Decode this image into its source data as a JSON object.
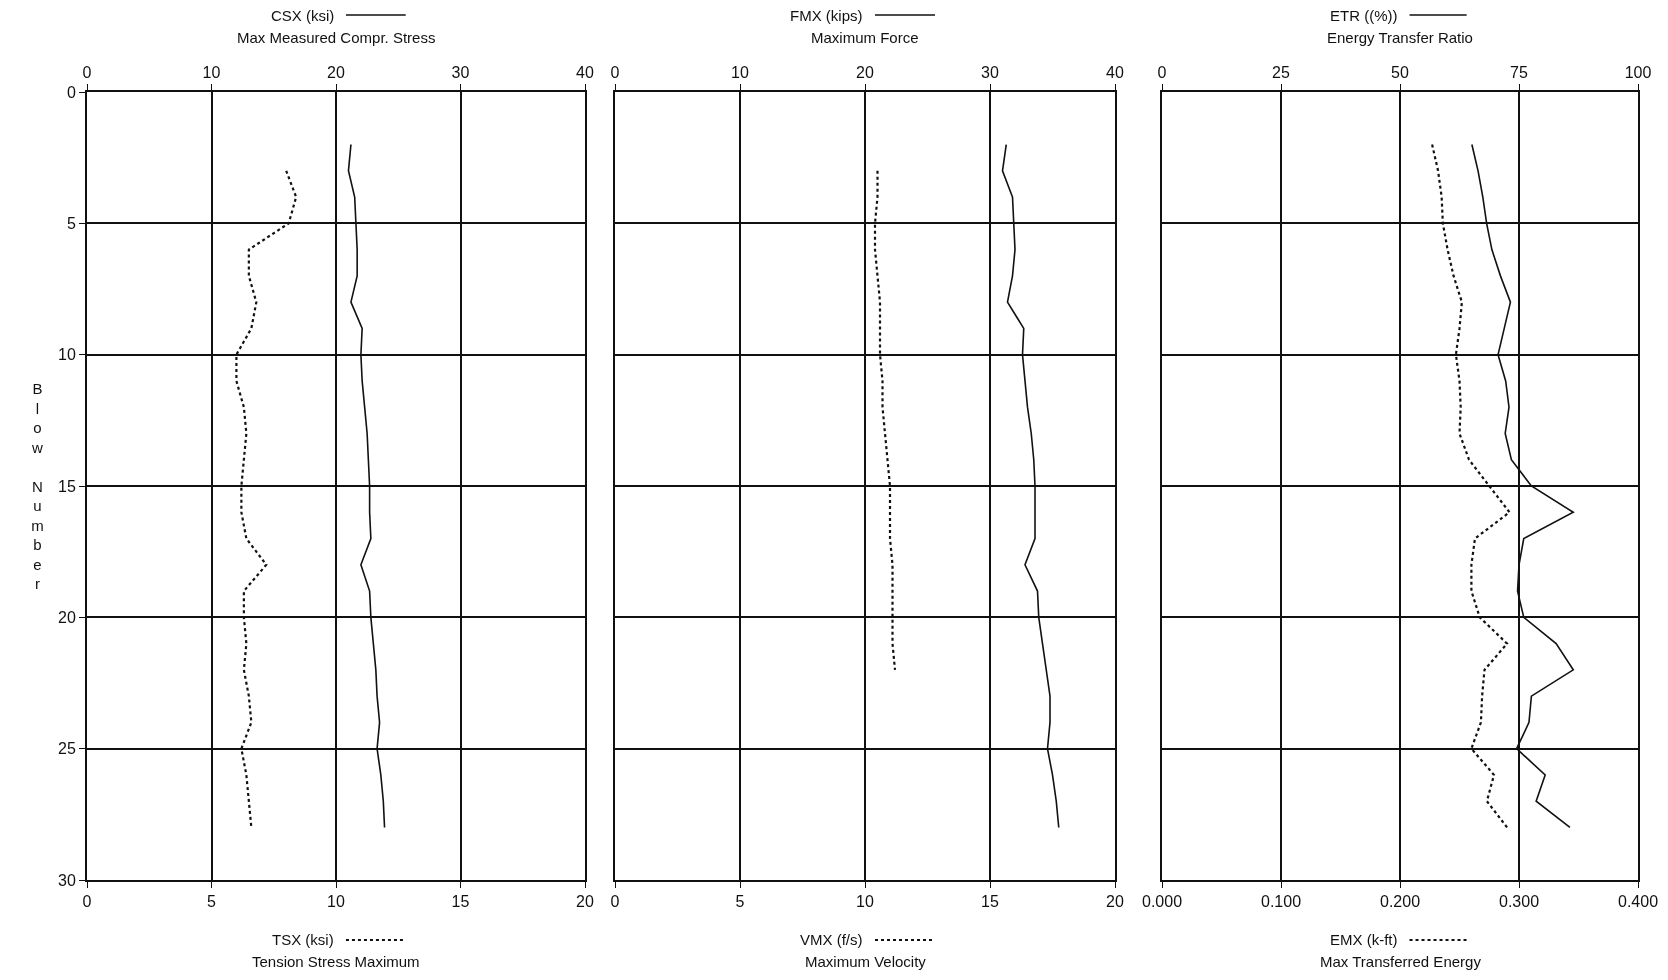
{
  "chart_data": [
    {
      "type": "line",
      "orientation": "horizontal",
      "legend": "top",
      "ylabel": "Blow Number",
      "x2label": "Max Measured Compr. Stress",
      "xlabel": "Tension Stress Maximum",
      "x": [
        2,
        3,
        4,
        5,
        6,
        7,
        8,
        9,
        10,
        11,
        12,
        13,
        14,
        15,
        16,
        17,
        18,
        19,
        20,
        21,
        22,
        23,
        24,
        25,
        26,
        27,
        28
      ],
      "ylim": [
        30,
        0
      ],
      "yticks": [
        0,
        5,
        10,
        15,
        20,
        25,
        30
      ],
      "xlim": [
        0,
        20
      ],
      "xticks": [
        0,
        5,
        10,
        15,
        20
      ],
      "x2lim": [
        0,
        40
      ],
      "x2ticks": [
        0,
        10,
        20,
        30,
        40
      ],
      "grid": true,
      "series": [
        {
          "name": "CSX (ksi)",
          "axis": "x2",
          "color": "#111111",
          "line_style": "solid",
          "values": [
            21.2,
            21.0,
            21.5,
            21.6,
            21.7,
            21.7,
            21.2,
            22.1,
            22.0,
            22.1,
            22.3,
            22.5,
            22.6,
            22.7,
            22.7,
            22.8,
            22.0,
            22.7,
            22.8,
            23.0,
            23.2,
            23.3,
            23.5,
            23.3,
            23.6,
            23.8,
            23.9
          ]
        },
        {
          "name": "TSX (ksi)",
          "color": "#111111",
          "line_style": "dotted",
          "values": [
            null,
            8.0,
            8.4,
            8.1,
            6.5,
            6.5,
            6.8,
            6.6,
            6.0,
            6.0,
            6.3,
            6.4,
            6.3,
            6.2,
            6.2,
            6.4,
            7.2,
            6.3,
            6.3,
            6.4,
            6.3,
            6.5,
            6.6,
            6.2,
            6.4,
            6.5,
            6.6
          ]
        }
      ]
    },
    {
      "type": "line",
      "orientation": "horizontal",
      "legend": "top",
      "x2label": "Maximum Force",
      "xlabel": "Maximum Velocity",
      "tick_labels": "x",
      "x": [
        2,
        3,
        4,
        5,
        6,
        7,
        8,
        9,
        10,
        11,
        12,
        13,
        14,
        15,
        16,
        17,
        18,
        19,
        20,
        21,
        22,
        23,
        24,
        25,
        26,
        27,
        28
      ],
      "ylim": [
        30,
        0
      ],
      "yticks": [
        0,
        5,
        10,
        15,
        20,
        25,
        30
      ],
      "xlim": [
        0,
        20
      ],
      "xticks": [
        0,
        5,
        10,
        15,
        20
      ],
      "x2lim": [
        0,
        40
      ],
      "x2ticks": [
        0,
        10,
        20,
        30,
        40
      ],
      "grid": true,
      "series": [
        {
          "name": "FMX (kips)",
          "axis": "x2",
          "color": "#111111",
          "line_style": "solid",
          "values": [
            31.3,
            31.0,
            31.8,
            31.9,
            32.0,
            31.8,
            31.4,
            32.7,
            32.6,
            32.8,
            33.0,
            33.3,
            33.5,
            33.6,
            33.6,
            33.6,
            32.8,
            33.8,
            33.9,
            34.2,
            34.5,
            34.8,
            34.8,
            34.6,
            35.0,
            35.3,
            35.5
          ]
        },
        {
          "name": "VMX (f/s)",
          "color": "#111111",
          "line_style": "dotted",
          "values": [
            null,
            10.5,
            10.5,
            10.4,
            10.4,
            10.5,
            10.6,
            10.6,
            10.6,
            10.7,
            10.7,
            10.8,
            10.9,
            11.0,
            11.0,
            11.0,
            11.1,
            11.1,
            11.1,
            11.1,
            11.2,
            null,
            null,
            null,
            null,
            null,
            null
          ]
        }
      ]
    },
    {
      "type": "line",
      "orientation": "horizontal",
      "legend": "top",
      "x2label": "Energy Transfer Ratio",
      "xlabel": "Max Transferred Energy",
      "tick_labels": "x",
      "x": [
        2,
        3,
        4,
        5,
        6,
        7,
        8,
        9,
        10,
        11,
        12,
        13,
        14,
        15,
        16,
        17,
        18,
        19,
        20,
        21,
        22,
        23,
        24,
        25,
        26,
        27,
        28
      ],
      "ylim": [
        30,
        0
      ],
      "yticks": [
        0,
        5,
        10,
        15,
        20,
        25,
        30
      ],
      "xlim": [
        0,
        0.4
      ],
      "xticks": [
        {
          "value": 0,
          "label": "0.000"
        },
        {
          "value": 0.1,
          "label": "0.100"
        },
        {
          "value": 0.2,
          "label": "0.200"
        },
        {
          "value": 0.3,
          "label": "0.300"
        },
        {
          "value": 0.4,
          "label": "0.400"
        }
      ],
      "x2lim": [
        0,
        100
      ],
      "x2ticks": [
        0,
        25,
        50,
        75,
        100
      ],
      "grid": true,
      "series": [
        {
          "name": "ETR ((%))",
          "axis": "x2",
          "color": "#111111",
          "line_style": "solid",
          "values": [
            65.1,
            66.4,
            67.4,
            68.2,
            69.3,
            71.1,
            73.2,
            71.9,
            70.6,
            72.2,
            72.9,
            72.1,
            73.4,
            77.6,
            86.4,
            76.0,
            75.0,
            74.7,
            76.0,
            82.8,
            86.4,
            77.6,
            77.1,
            74.5,
            80.5,
            78.6,
            85.7
          ]
        },
        {
          "name": "EMX (k-ft)",
          "color": "#111111",
          "line_style": "dotted",
          "values": [
            0.227,
            0.232,
            0.235,
            0.236,
            0.24,
            0.245,
            0.252,
            0.25,
            0.247,
            0.25,
            0.251,
            0.25,
            0.258,
            0.275,
            0.292,
            0.263,
            0.26,
            0.26,
            0.267,
            0.29,
            0.271,
            0.269,
            0.268,
            0.26,
            0.279,
            0.273,
            0.29
          ]
        }
      ]
    }
  ]
}
